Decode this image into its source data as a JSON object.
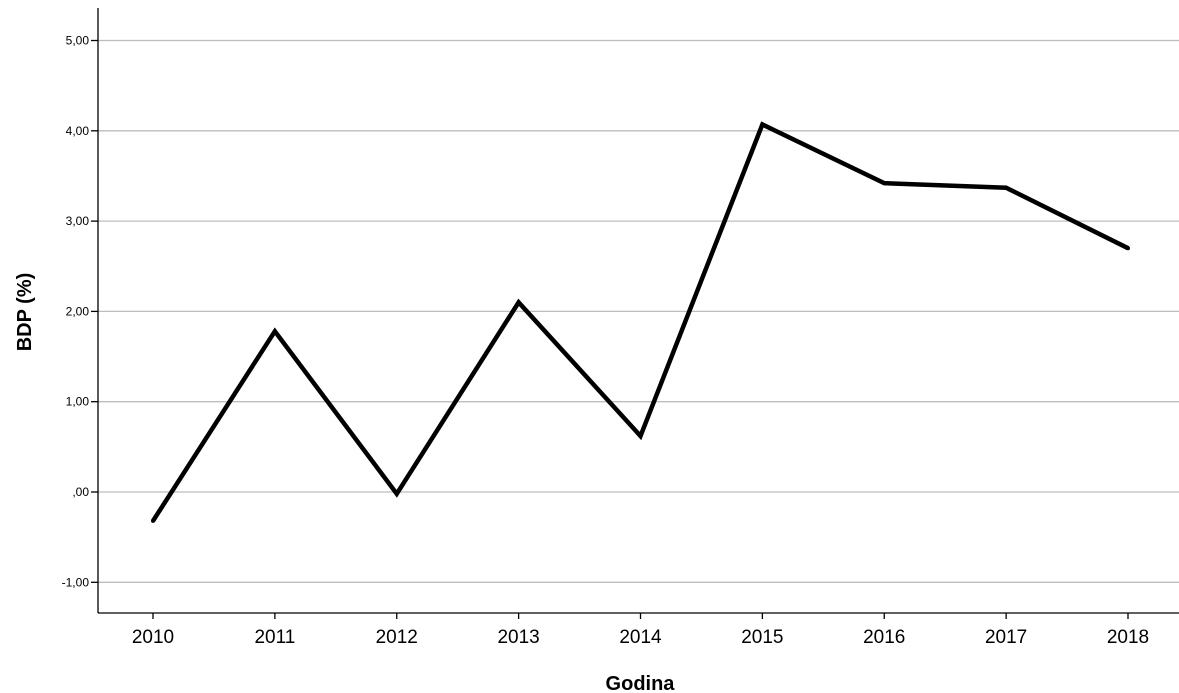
{
  "chart_data": {
    "type": "line",
    "title": "",
    "xlabel": "Godina",
    "ylabel": "BDP (%)",
    "categories": [
      "2010",
      "2011",
      "2012",
      "2013",
      "2014",
      "2015",
      "2016",
      "2017",
      "2018"
    ],
    "series": [
      {
        "values": [
          -0.32,
          1.78,
          -0.02,
          2.1,
          0.62,
          4.07,
          3.42,
          3.37,
          2.7
        ]
      }
    ],
    "ylim": [
      -1.34,
      5.36
    ],
    "yticks": [
      -1,
      0,
      1,
      2,
      3,
      4,
      5
    ],
    "ytick_labels": [
      "-1,00",
      ",00",
      "1,00",
      "2,00",
      "3,00",
      "4,00",
      "5,00"
    ],
    "grid": "horizontal",
    "legend": "none",
    "line_color": "#000000",
    "grid_color": "#bdbdbd"
  }
}
